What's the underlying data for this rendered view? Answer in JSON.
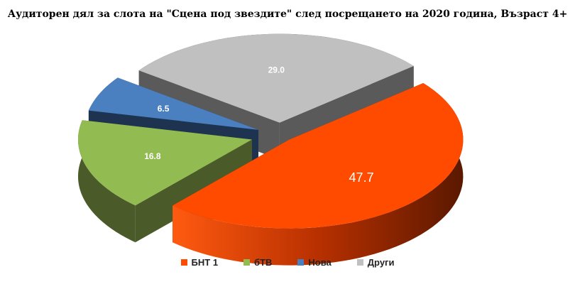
{
  "chart_data": {
    "type": "pie",
    "title": "Аудиторен дял за слота на \"Сцена под звездите\" след посрещането на 2020 година, Възраст 4+",
    "slices": [
      {
        "name": "БНТ 1",
        "value": 47.7,
        "label": "47.7",
        "color": "#ff4b00",
        "side_color": "#7a2200"
      },
      {
        "name": "бТВ",
        "value": 16.8,
        "label": "16.8",
        "color": "#92bb51",
        "side_color": "#4a5a28"
      },
      {
        "name": "Нова",
        "value": 6.5,
        "label": "6.5",
        "color": "#4a7fc0",
        "side_color": "#1e3350"
      },
      {
        "name": "Други",
        "value": 29.0,
        "label": "29.0",
        "color": "#c0c0c0",
        "side_color": "#5a5a5a"
      }
    ],
    "legend": {
      "position": "bottom"
    },
    "style": "3d-exploded"
  }
}
